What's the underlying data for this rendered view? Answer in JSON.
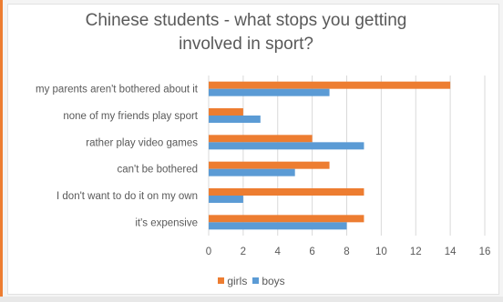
{
  "chart_data": {
    "type": "bar",
    "orientation": "horizontal",
    "title": "Chinese students - what stops you getting involved in sport?",
    "title_lines": [
      "Chinese students - what stops you getting",
      "involved in sport?"
    ],
    "categories": [
      "my parents aren't bothered about it",
      "none of my friends play sport",
      "rather play video games",
      "can't be bothered",
      "I don't want to do it on my own",
      "it's expensive"
    ],
    "series": [
      {
        "name": "girls",
        "color": "#ed7d31",
        "values": [
          14,
          2,
          6,
          7,
          9,
          9
        ]
      },
      {
        "name": "boys",
        "color": "#5b9bd5",
        "values": [
          7,
          3,
          9,
          5,
          2,
          8
        ]
      }
    ],
    "xlim": [
      0,
      16
    ],
    "xticks": [
      "0",
      "2",
      "4",
      "6",
      "8",
      "10",
      "12",
      "14",
      "16"
    ],
    "grid": true,
    "legend_position": "bottom"
  },
  "colors": {
    "accent": "#ed7d31",
    "grid": "#d9d9d9",
    "text": "#595959"
  }
}
